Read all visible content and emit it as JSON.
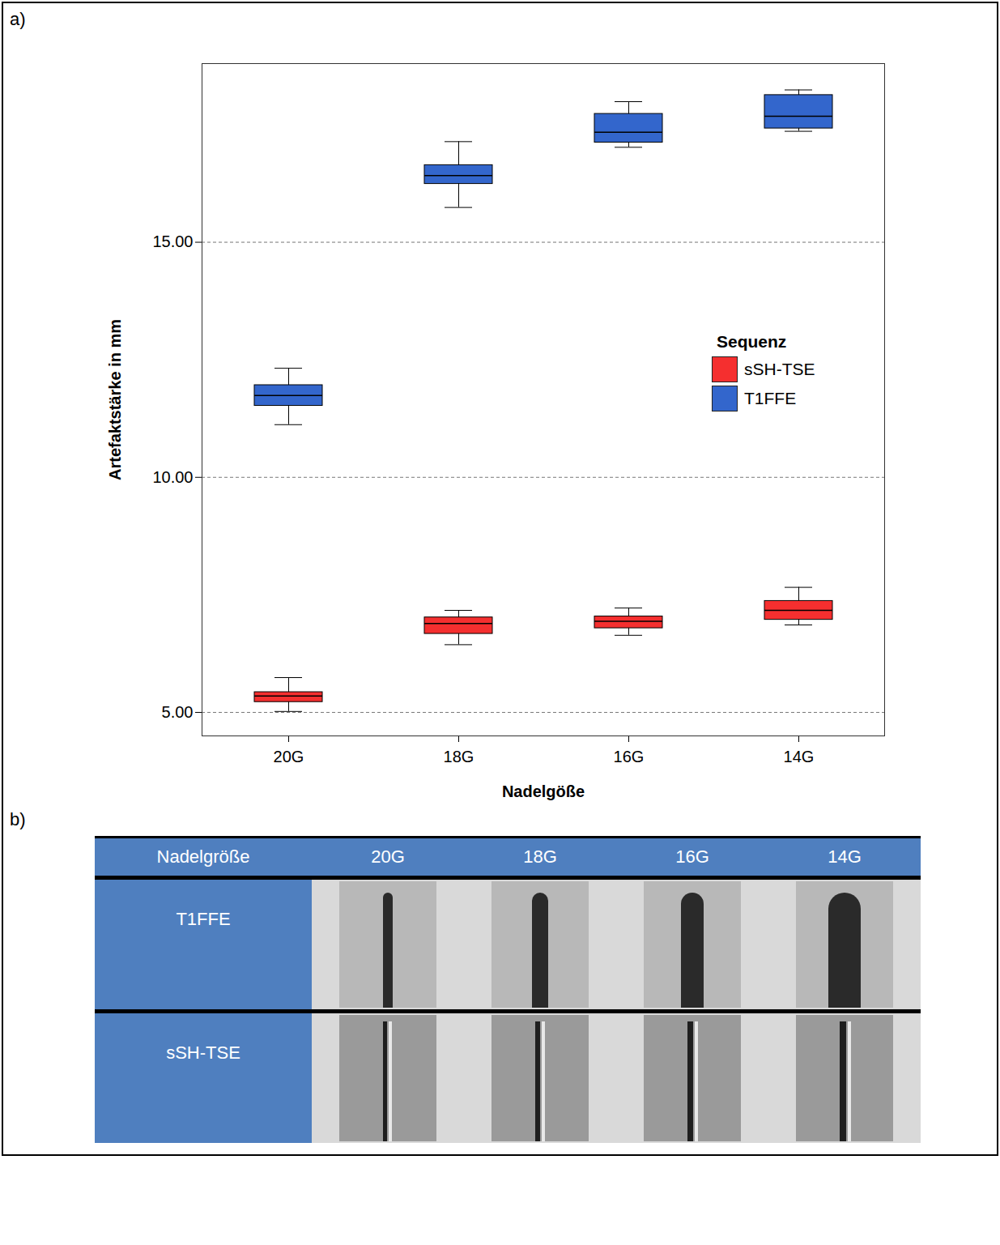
{
  "chart_data": {
    "type": "box",
    "panel_label": "a)",
    "x_label": "Nadelgöße",
    "y_label": "Artefaktstärke in mm",
    "categories": [
      "20G",
      "18G",
      "16G",
      "14G"
    ],
    "legend_title": "Sequenz",
    "legend": "right",
    "grid": true,
    "ylim": [
      4.5,
      18.8
    ],
    "yticks": [
      {
        "value": 5,
        "label": "5.00"
      },
      {
        "value": 10,
        "label": "10.00"
      },
      {
        "value": 15,
        "label": "15.00"
      }
    ],
    "series": [
      {
        "name": "sSH-TSE",
        "color": "#f52f2f",
        "values": [
          5.35,
          6.89,
          6.94,
          7.17
        ],
        "q1": [
          5.22,
          6.67,
          6.79,
          6.97
        ],
        "q3": [
          5.43,
          7.02,
          7.04,
          7.37
        ],
        "min": [
          5.02,
          6.44,
          6.64,
          6.86
        ],
        "max": [
          5.74,
          7.17,
          7.22,
          7.66
        ]
      },
      {
        "name": "T1FFE",
        "color": "#3366cc",
        "values": [
          11.74,
          16.42,
          17.34,
          17.68
        ],
        "q1": [
          11.52,
          16.24,
          17.12,
          17.42
        ],
        "q3": [
          11.96,
          16.64,
          17.73,
          18.13
        ],
        "min": [
          11.12,
          15.74,
          17.02,
          17.36
        ],
        "max": [
          12.32,
          17.14,
          17.99,
          18.24
        ]
      }
    ]
  },
  "image_table": {
    "panel_label": "b)",
    "header": [
      "Nadelgröße",
      "20G",
      "18G",
      "16G",
      "14G"
    ],
    "rows": [
      "T1FFE",
      "sSH-TSE"
    ]
  }
}
